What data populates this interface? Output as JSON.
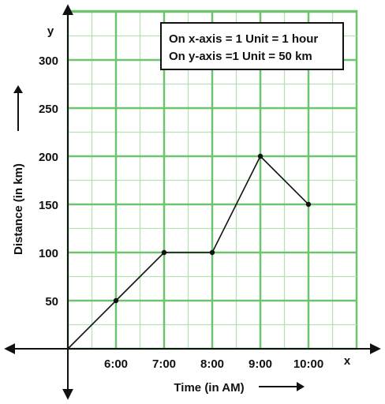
{
  "chart_data": {
    "type": "line",
    "x_axis": {
      "label": "Time (in AM)",
      "symbol": "x",
      "tick_labels": [
        "6:00",
        "7:00",
        "8:00",
        "9:00",
        "10:00"
      ],
      "range_hours": [
        5,
        10.75
      ]
    },
    "y_axis": {
      "label": "Distance (in km)",
      "symbol": "y",
      "tick_labels": [
        "50",
        "100",
        "150",
        "200",
        "250",
        "300"
      ],
      "range_km": [
        0,
        350
      ],
      "ticks": [
        50,
        100,
        150,
        200,
        250,
        300
      ]
    },
    "series": [
      {
        "points": [
          {
            "x": "5:00",
            "y": 0
          },
          {
            "x": "6:00",
            "y": 50
          },
          {
            "x": "7:00",
            "y": 100
          },
          {
            "x": "8:00",
            "y": 100
          },
          {
            "x": "9:00",
            "y": 200
          },
          {
            "x": "10:00",
            "y": 150
          }
        ]
      }
    ],
    "legend": {
      "lines": [
        "On x-axis = 1 Unit = 1 hour",
        "On y-axis =1 Unit = 50 km"
      ],
      "placement": "top-right"
    },
    "grid": true,
    "colors": {
      "grid": "#6ec36e",
      "minor_grid": "#b8e0b8",
      "line": "#111111"
    }
  }
}
